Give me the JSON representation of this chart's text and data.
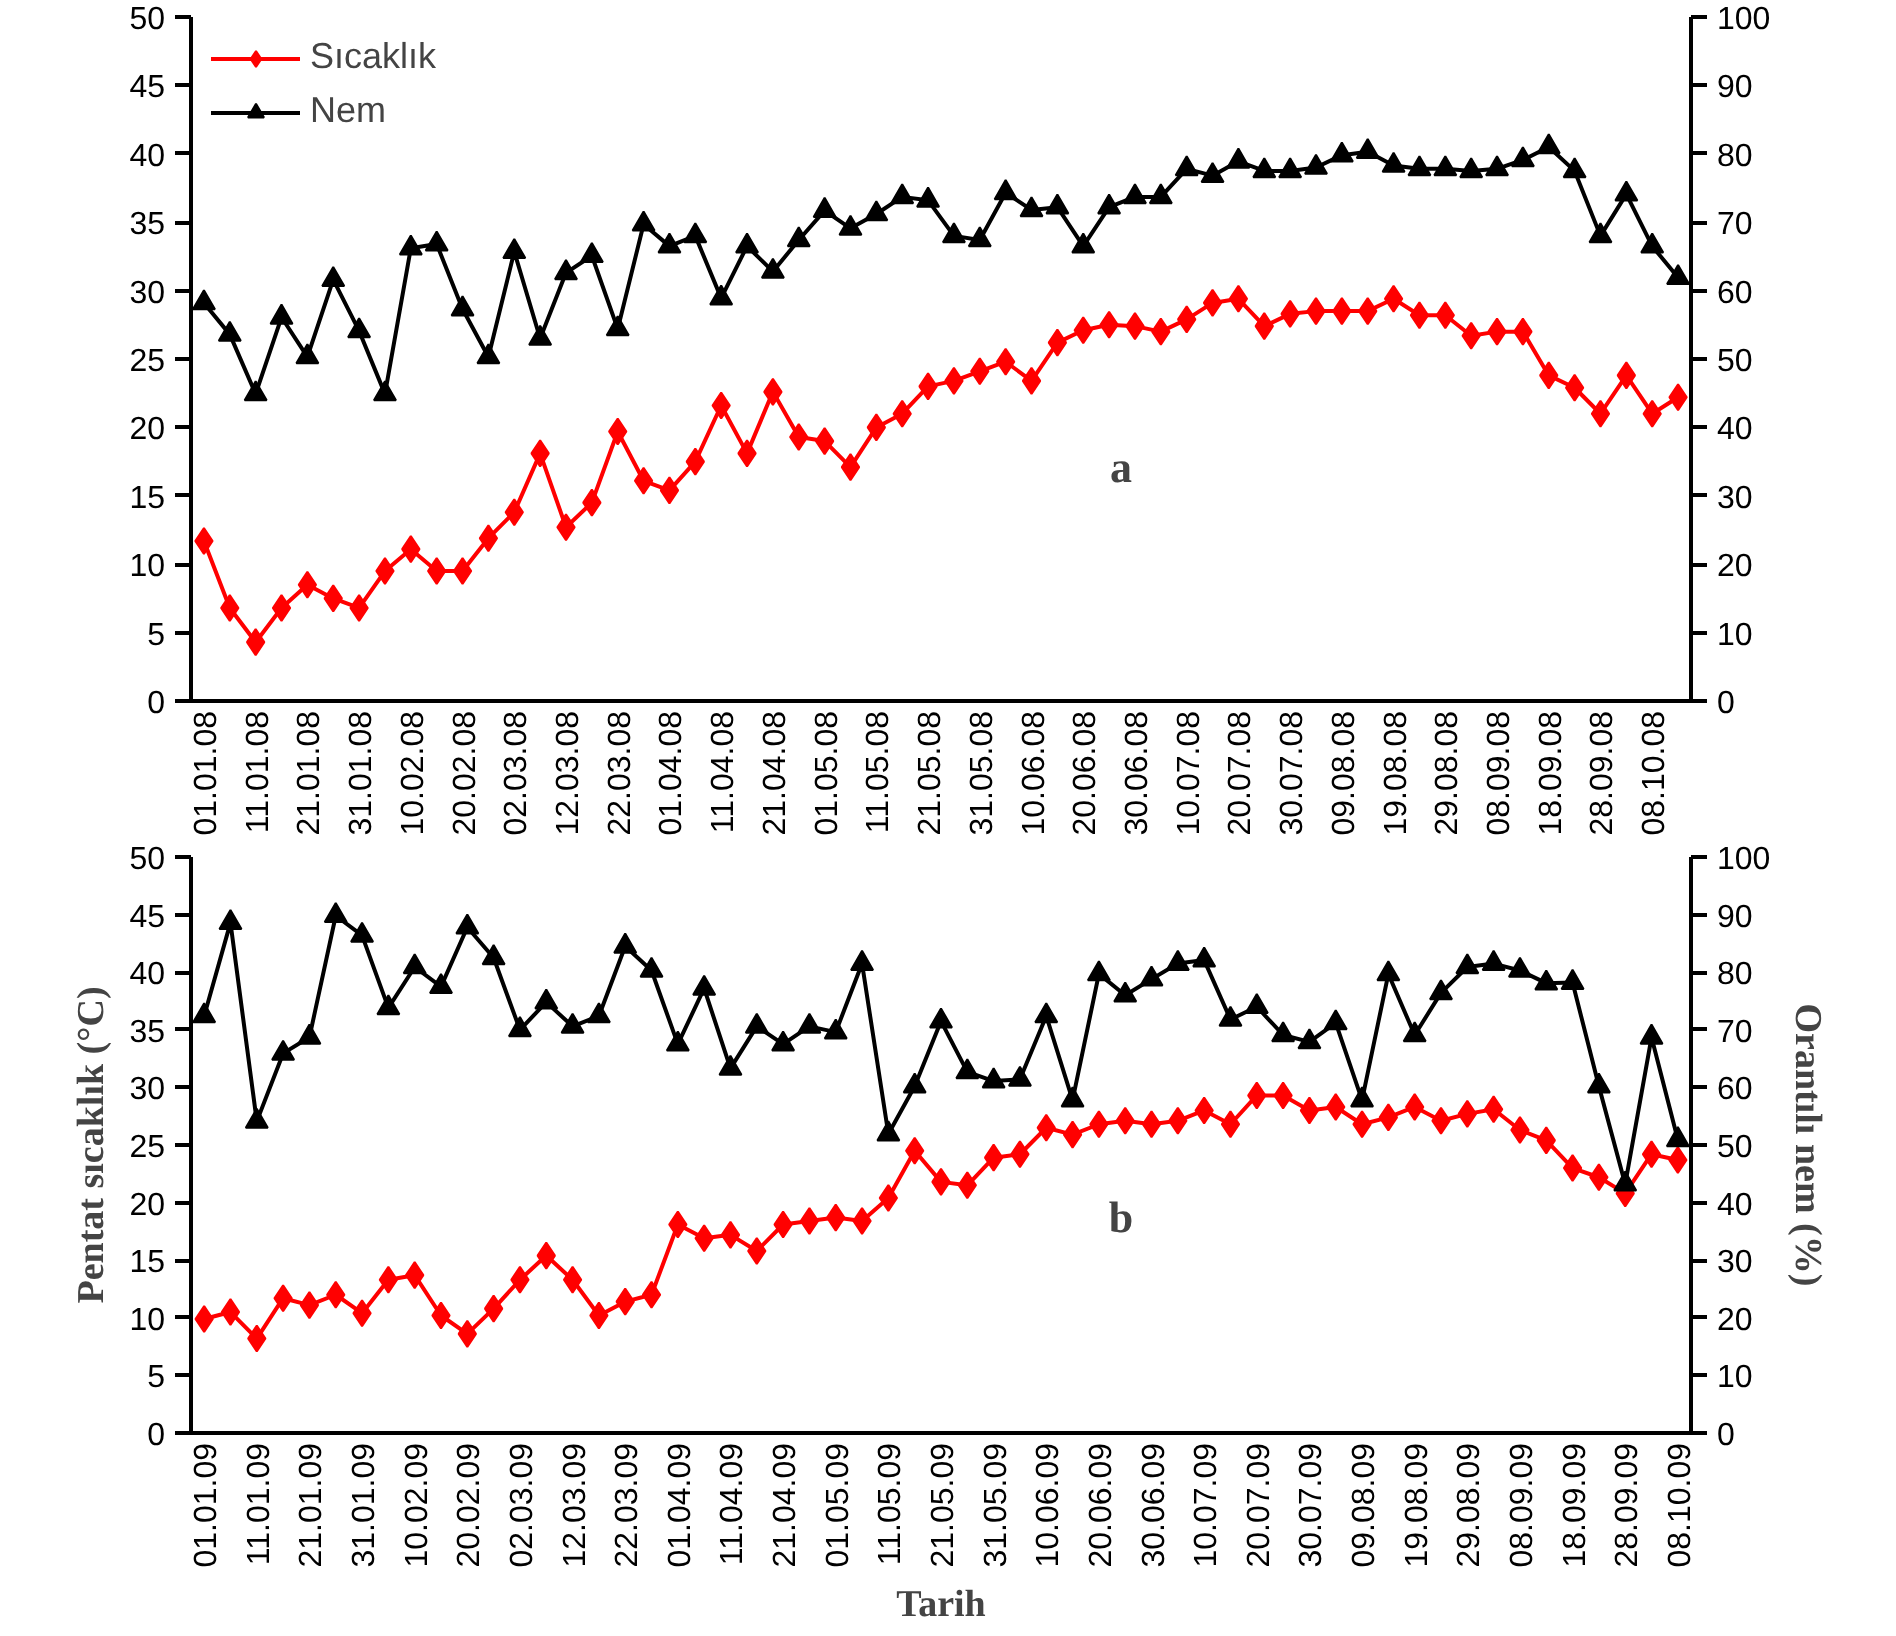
{
  "chart_data": [
    {
      "type": "line",
      "legend": "top left",
      "grid": false,
      "annotations": [
        "a"
      ],
      "categories": [
        "01.01.08",
        null,
        "11.01.08",
        null,
        "21.01.08",
        null,
        "31.01.08",
        null,
        "10.02.08",
        null,
        "20.02.08",
        null,
        "02.03.08",
        null,
        "12.03.08",
        null,
        "22.03.08",
        null,
        "01.04.08",
        null,
        "11.04.08",
        null,
        "21.04.08",
        null,
        "01.05.08",
        null,
        "11.05.08",
        null,
        "21.05.08",
        null,
        "31.05.08",
        null,
        "10.06.08",
        null,
        "20.06.08",
        null,
        "30.06.08",
        null,
        "10.07.08",
        null,
        "20.07.08",
        null,
        "30.07.08",
        null,
        "09.08.08",
        null,
        "19.08.08",
        null,
        "29.08.08",
        null,
        "08.09.08",
        null,
        "18.09.08",
        null,
        "28.09.08",
        null,
        "08.10.08",
        null
      ],
      "ylim": [
        0,
        50
      ],
      "yticks": [
        0,
        5,
        10,
        15,
        20,
        25,
        30,
        35,
        40,
        45,
        50
      ],
      "y2lim": [
        0,
        100
      ],
      "y2ticks": [
        0,
        10,
        20,
        30,
        40,
        50,
        60,
        70,
        80,
        90,
        100
      ],
      "series": [
        {
          "name": "Sıcaklık",
          "color": "#ff0000",
          "marker": "diamond",
          "values": [
            11.7,
            6.8,
            4.3,
            6.8,
            8.5,
            7.5,
            6.8,
            9.5,
            11.1,
            9.5,
            9.5,
            11.9,
            13.8,
            18.1,
            12.7,
            14.5,
            19.7,
            16.1,
            15.4,
            17.5,
            21.6,
            18.1,
            22.6,
            19.3,
            19.0,
            17.1,
            20.0,
            21.0,
            23.0,
            23.4,
            24.1,
            24.8,
            23.4,
            26.2,
            27.1,
            27.5,
            27.4,
            27.0,
            27.9,
            29.1,
            29.4,
            27.4,
            28.3,
            28.5,
            28.5,
            28.5,
            29.4,
            28.2,
            28.2,
            26.7,
            27.0,
            27.0,
            23.8,
            22.9,
            21.0,
            23.8,
            21.0,
            22.2
          ]
        },
        {
          "name": "Nem",
          "color": "#000000",
          "marker": "triangle",
          "axis": "y2",
          "values": [
            58.2,
            53.6,
            44.9,
            56.1,
            50.3,
            61.6,
            54.1,
            44.9,
            66.2,
            66.8,
            57.3,
            50.3,
            65.7,
            53.0,
            62.6,
            65.1,
            54.4,
            69.7,
            66.5,
            68.0,
            58.9,
            66.5,
            62.8,
            67.4,
            71.7,
            69.1,
            71.2,
            73.7,
            73.2,
            68.0,
            67.4,
            74.3,
            71.8,
            72.2,
            66.5,
            72.2,
            73.7,
            73.7,
            77.8,
            76.8,
            78.9,
            77.5,
            77.5,
            78.0,
            79.8,
            80.3,
            78.3,
            77.8,
            77.8,
            77.5,
            77.8,
            79.1,
            81.0,
            77.5,
            68.0,
            74.1,
            66.5,
            61.9
          ]
        }
      ]
    },
    {
      "type": "line",
      "grid": false,
      "annotations": [
        "b"
      ],
      "xlabel": "Tarih",
      "ylabel": "Pentat sıcaklık (°C)",
      "y2label": "Orantılı nem (%)",
      "categories": [
        "01.01.09",
        null,
        "11.01.09",
        null,
        "21.01.09",
        null,
        "31.01.09",
        null,
        "10.02.09",
        null,
        "20.02.09",
        null,
        "02.03.09",
        null,
        "12.03.09",
        null,
        "22.03.09",
        null,
        "01.04.09",
        null,
        "11.04.09",
        null,
        "21.04.09",
        null,
        "01.05.09",
        null,
        "11.05.09",
        null,
        "21.05.09",
        null,
        "31.05.09",
        null,
        "10.06.09",
        null,
        "20.06.09",
        null,
        "30.06.09",
        null,
        "10.07.09",
        null,
        "20.07.09",
        null,
        "30.07.09",
        null,
        "09.08.09",
        null,
        "19.08.09",
        null,
        "29.08.09",
        null,
        "08.09.09",
        null,
        "18.09.09",
        null,
        "28.09.09",
        null,
        "08.10.09"
      ],
      "ylim": [
        0,
        50
      ],
      "yticks": [
        0,
        5,
        10,
        15,
        20,
        25,
        30,
        35,
        40,
        45,
        50
      ],
      "y2lim": [
        0,
        100
      ],
      "y2ticks": [
        0,
        10,
        20,
        30,
        40,
        50,
        60,
        70,
        80,
        90,
        100
      ],
      "series": [
        {
          "color": "#ff0000",
          "marker": "diamond",
          "values": [
            9.9,
            10.5,
            8.2,
            11.7,
            11.1,
            12.0,
            10.4,
            13.3,
            13.7,
            10.2,
            8.6,
            10.8,
            13.3,
            15.4,
            13.3,
            10.2,
            11.4,
            12.0,
            18.1,
            16.9,
            17.2,
            15.8,
            18.1,
            18.4,
            18.7,
            18.4,
            20.4,
            24.5,
            21.8,
            21.5,
            23.9,
            24.2,
            26.5,
            25.9,
            26.8,
            27.1,
            26.8,
            27.1,
            28.0,
            26.8,
            29.3,
            29.3,
            28.0,
            28.3,
            26.8,
            27.4,
            28.3,
            27.1,
            27.7,
            28.1,
            26.3,
            25.4,
            23.0,
            22.2,
            20.8,
            24.2,
            23.7
          ]
        },
        {
          "color": "#000000",
          "marker": "triangle",
          "axis": "y2",
          "values": [
            72.4,
            88.6,
            54.1,
            65.9,
            68.7,
            89.8,
            86.4,
            73.8,
            80.9,
            77.5,
            87.8,
            82.5,
            70.0,
            74.8,
            70.6,
            72.4,
            84.5,
            80.3,
            67.5,
            77.2,
            63.3,
            70.6,
            67.5,
            70.6,
            69.6,
            81.5,
            51.9,
            60.2,
            71.5,
            62.7,
            61.1,
            61.4,
            72.4,
            57.8,
            79.7,
            76.0,
            78.8,
            81.5,
            82.1,
            71.8,
            74.0,
            69.1,
            67.9,
            71.2,
            57.8,
            79.7,
            69.1,
            76.4,
            80.9,
            81.5,
            80.3,
            78.1,
            78.2,
            60.2,
            43.2,
            68.7,
            50.9
          ]
        }
      ]
    }
  ]
}
